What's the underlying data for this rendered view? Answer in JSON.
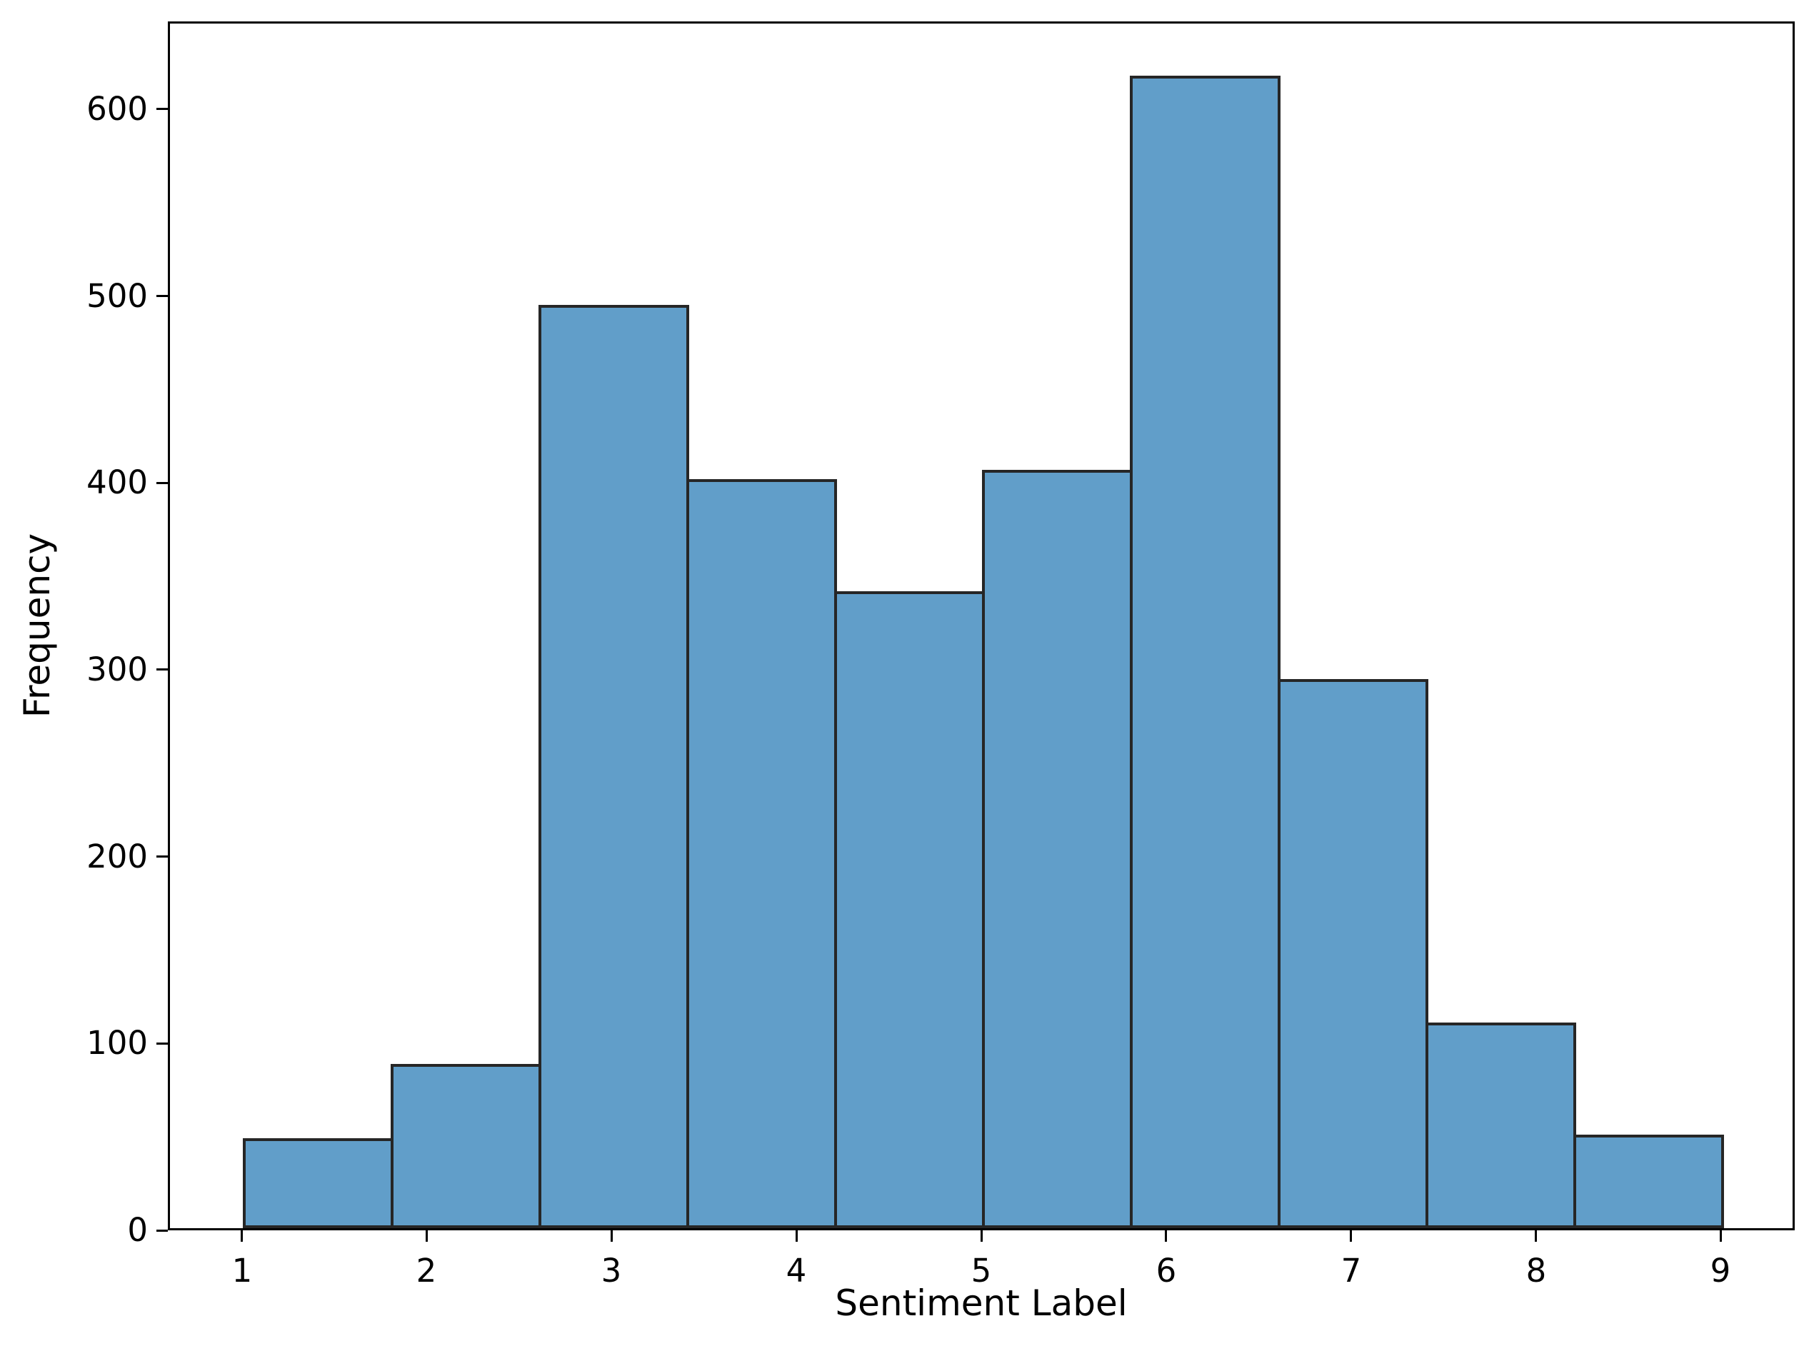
{
  "chart_data": {
    "type": "bar",
    "subtype": "histogram",
    "title": "",
    "xlabel": "Sentiment Label",
    "ylabel": "Frequency",
    "bin_edges": [
      1.0,
      1.8,
      2.6,
      3.4,
      4.2,
      5.0,
      5.8,
      6.6,
      7.4,
      8.2,
      9.0
    ],
    "frequencies": [
      48,
      88,
      494,
      401,
      341,
      406,
      617,
      294,
      110,
      50
    ],
    "x_ticks": [
      1,
      2,
      3,
      4,
      5,
      6,
      7,
      8,
      9
    ],
    "y_ticks": [
      0,
      100,
      200,
      300,
      400,
      500,
      600
    ],
    "xlim": [
      0.6,
      9.4
    ],
    "ylim": [
      0,
      647
    ],
    "grid": false,
    "legend": null,
    "colors": {
      "bar_fill": "#619EC9",
      "bar_edge": "#262626",
      "spine": "#000000",
      "text": "#000000",
      "background": "#ffffff"
    }
  }
}
